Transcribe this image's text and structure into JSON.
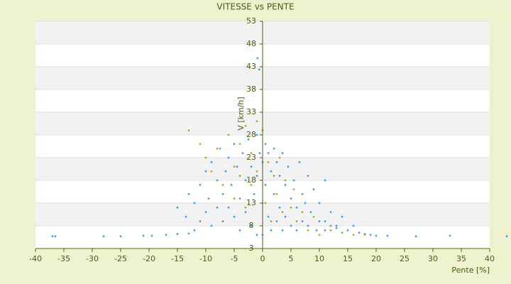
{
  "chart_data": {
    "type": "scatter",
    "title": "VITESSE vs PENTE",
    "xlabel": "Pente [%]",
    "ylabel": "V [km/h]",
    "xlim": [
      -40,
      40
    ],
    "xticks": [
      -40,
      -35,
      -30,
      -25,
      -20,
      -15,
      -10,
      -5,
      0,
      5,
      10,
      15,
      20,
      25,
      30,
      35,
      40
    ],
    "ylim": [
      3,
      53
    ],
    "yticks": [
      3,
      8,
      13,
      18,
      23,
      28,
      33,
      38,
      43,
      48,
      53
    ],
    "grid": true,
    "series": [
      {
        "color": "#3d8fd8",
        "x": [
          -36.5,
          -37,
          -28,
          -25,
          -21,
          -19.5,
          -17,
          -15,
          -13,
          -12,
          20,
          22,
          27,
          33,
          43,
          19,
          17,
          15,
          13,
          12,
          14,
          16,
          18,
          11,
          -15,
          -13.5,
          -13,
          -12,
          -11,
          -11,
          -10,
          -10,
          -9.5,
          -9,
          -9,
          -8,
          -8,
          -7.5,
          -7,
          -7,
          -6.5,
          -6,
          -6,
          -5.5,
          -5,
          -5,
          -4.5,
          -4,
          -4,
          -3.5,
          -3,
          -3,
          -2.5,
          -2,
          -2,
          -1.5,
          -1,
          -1,
          -1,
          -0.5,
          0,
          0,
          0,
          0,
          0.5,
          0.5,
          1,
          1,
          1.5,
          1.5,
          2,
          2,
          2.5,
          2.5,
          3,
          3,
          3.5,
          3.5,
          4,
          4,
          4.5,
          5,
          5,
          5.5,
          6,
          6,
          6.5,
          7,
          7,
          7.5,
          8,
          8,
          8.5,
          9,
          9.5,
          10,
          10,
          11,
          11,
          12,
          13,
          -0.9,
          -0.6
        ],
        "y": [
          5.7,
          5.7,
          5.7,
          5.7,
          5.8,
          5.8,
          6,
          6.2,
          6.3,
          7,
          5.8,
          5.8,
          5.7,
          5.8,
          5.7,
          6,
          6.5,
          7,
          7.5,
          8,
          10,
          8,
          6.2,
          9,
          12,
          10,
          15,
          13,
          17,
          9,
          20,
          11,
          14,
          22,
          8,
          18,
          12,
          25,
          15,
          9,
          20,
          23,
          12,
          17,
          26,
          10,
          21,
          14,
          7,
          24,
          18,
          11,
          27,
          21,
          8,
          15,
          28,
          19,
          6,
          24,
          29,
          22,
          13,
          6,
          26,
          17,
          24,
          10,
          20,
          7,
          25,
          15,
          22,
          9,
          19,
          12,
          24,
          7,
          17,
          10,
          21,
          14,
          8,
          18,
          12,
          7,
          22,
          15,
          9,
          13,
          19,
          8,
          11,
          16,
          7,
          13,
          9,
          18,
          7,
          11,
          8,
          44.9,
          42.4
        ]
      },
      {
        "color": "#a3a41e",
        "x": [
          -13,
          -11,
          -10,
          -9,
          -8,
          -7,
          -6,
          -5,
          -5,
          -4,
          -4,
          -3,
          -3,
          -2,
          -2,
          -1,
          -1,
          0,
          0.5,
          1,
          1.5,
          2,
          2.5,
          3,
          3.5,
          4,
          5,
          5.5,
          6,
          7,
          8,
          9,
          10,
          12,
          14,
          16,
          18
        ],
        "y": [
          29,
          26,
          23,
          20,
          25,
          17,
          28,
          21,
          14,
          26,
          19,
          30,
          12,
          24,
          17,
          31,
          20,
          29,
          13,
          22,
          9,
          19,
          15,
          23,
          11,
          18,
          12,
          16,
          9,
          11,
          7,
          10,
          6,
          7,
          6.5,
          6,
          6
        ]
      }
    ]
  }
}
